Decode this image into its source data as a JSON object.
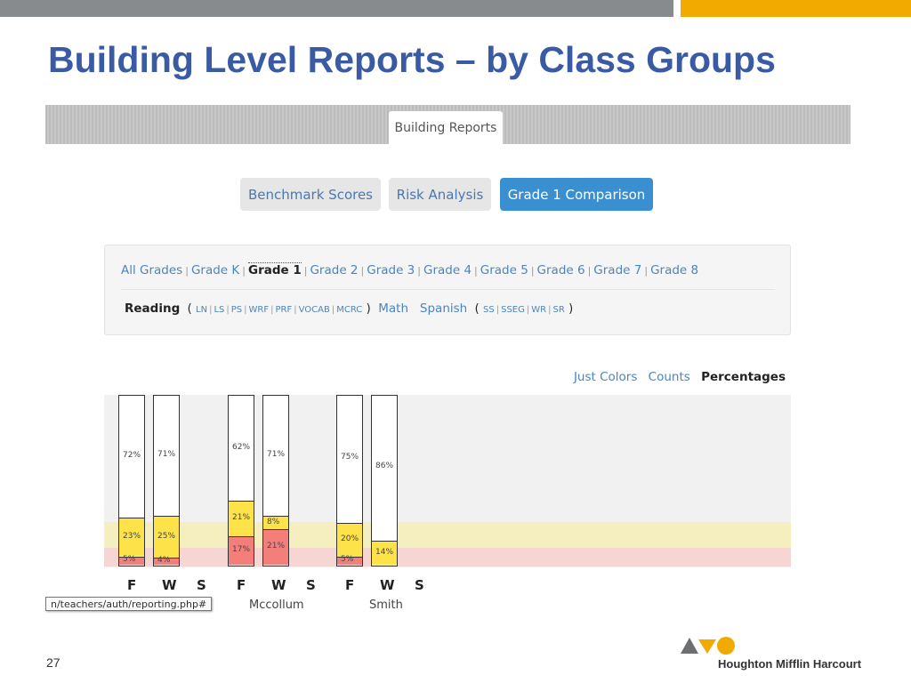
{
  "slide": {
    "title": "Building Level Reports – by Class Groups",
    "number": "27",
    "brand": "Houghton Mifflin Harcourt",
    "colors": {
      "top_bar": "#888b8d",
      "accent": "#f2a900",
      "title": "#3a5aa4"
    }
  },
  "app": {
    "tab": "Building Reports",
    "buttons": {
      "benchmark": "Benchmark Scores",
      "risk": "Risk Analysis",
      "grade1": "Grade 1 Comparison"
    },
    "grades": [
      "All Grades",
      "Grade K",
      "Grade 1",
      "Grade 2",
      "Grade 3",
      "Grade 4",
      "Grade 5",
      "Grade 6",
      "Grade 7",
      "Grade 8"
    ],
    "active_grade": "Grade 1",
    "subjects": {
      "reading": "Reading",
      "reading_subs": [
        "LN",
        "LS",
        "PS",
        "WRF",
        "PRF",
        "VOCAB",
        "MCRC"
      ],
      "math": "Math",
      "spanish": "Spanish",
      "spanish_subs": [
        "SS",
        "SSEG",
        "WR",
        "SR"
      ]
    },
    "views": {
      "colors": "Just Colors",
      "counts": "Counts",
      "percentages": "Percentages"
    },
    "active_view": "Percentages",
    "status_url": "n/teachers/auth/reporting.php#"
  },
  "chart_data": {
    "type": "bar",
    "stacked": true,
    "groups": [
      "",
      "Mccollum",
      "Smith"
    ],
    "periods": [
      "F",
      "W",
      "S"
    ],
    "series_colors": {
      "top": "#ffffff",
      "middle": "#fde24a",
      "bottom": "#f47f7a"
    },
    "bars": [
      {
        "group": 0,
        "period": "F",
        "labels": [
          "72%",
          "23%",
          "5%"
        ],
        "values": [
          72,
          23,
          5
        ]
      },
      {
        "group": 0,
        "period": "W",
        "labels": [
          "71%",
          "25%",
          "4%"
        ],
        "values": [
          71,
          25,
          4
        ]
      },
      {
        "group": 1,
        "period": "F",
        "labels": [
          "62%",
          "21%",
          "17%"
        ],
        "values": [
          62,
          21,
          17
        ]
      },
      {
        "group": 1,
        "period": "W",
        "labels": [
          "71%",
          "8%",
          "21%"
        ],
        "values": [
          71,
          8,
          21
        ]
      },
      {
        "group": 2,
        "period": "F",
        "labels": [
          "75%",
          "20%",
          "5%"
        ],
        "values": [
          75,
          20,
          5
        ]
      },
      {
        "group": 2,
        "period": "W",
        "labels": [
          "86%",
          "14%",
          ""
        ],
        "values": [
          86,
          14,
          0
        ]
      }
    ]
  }
}
